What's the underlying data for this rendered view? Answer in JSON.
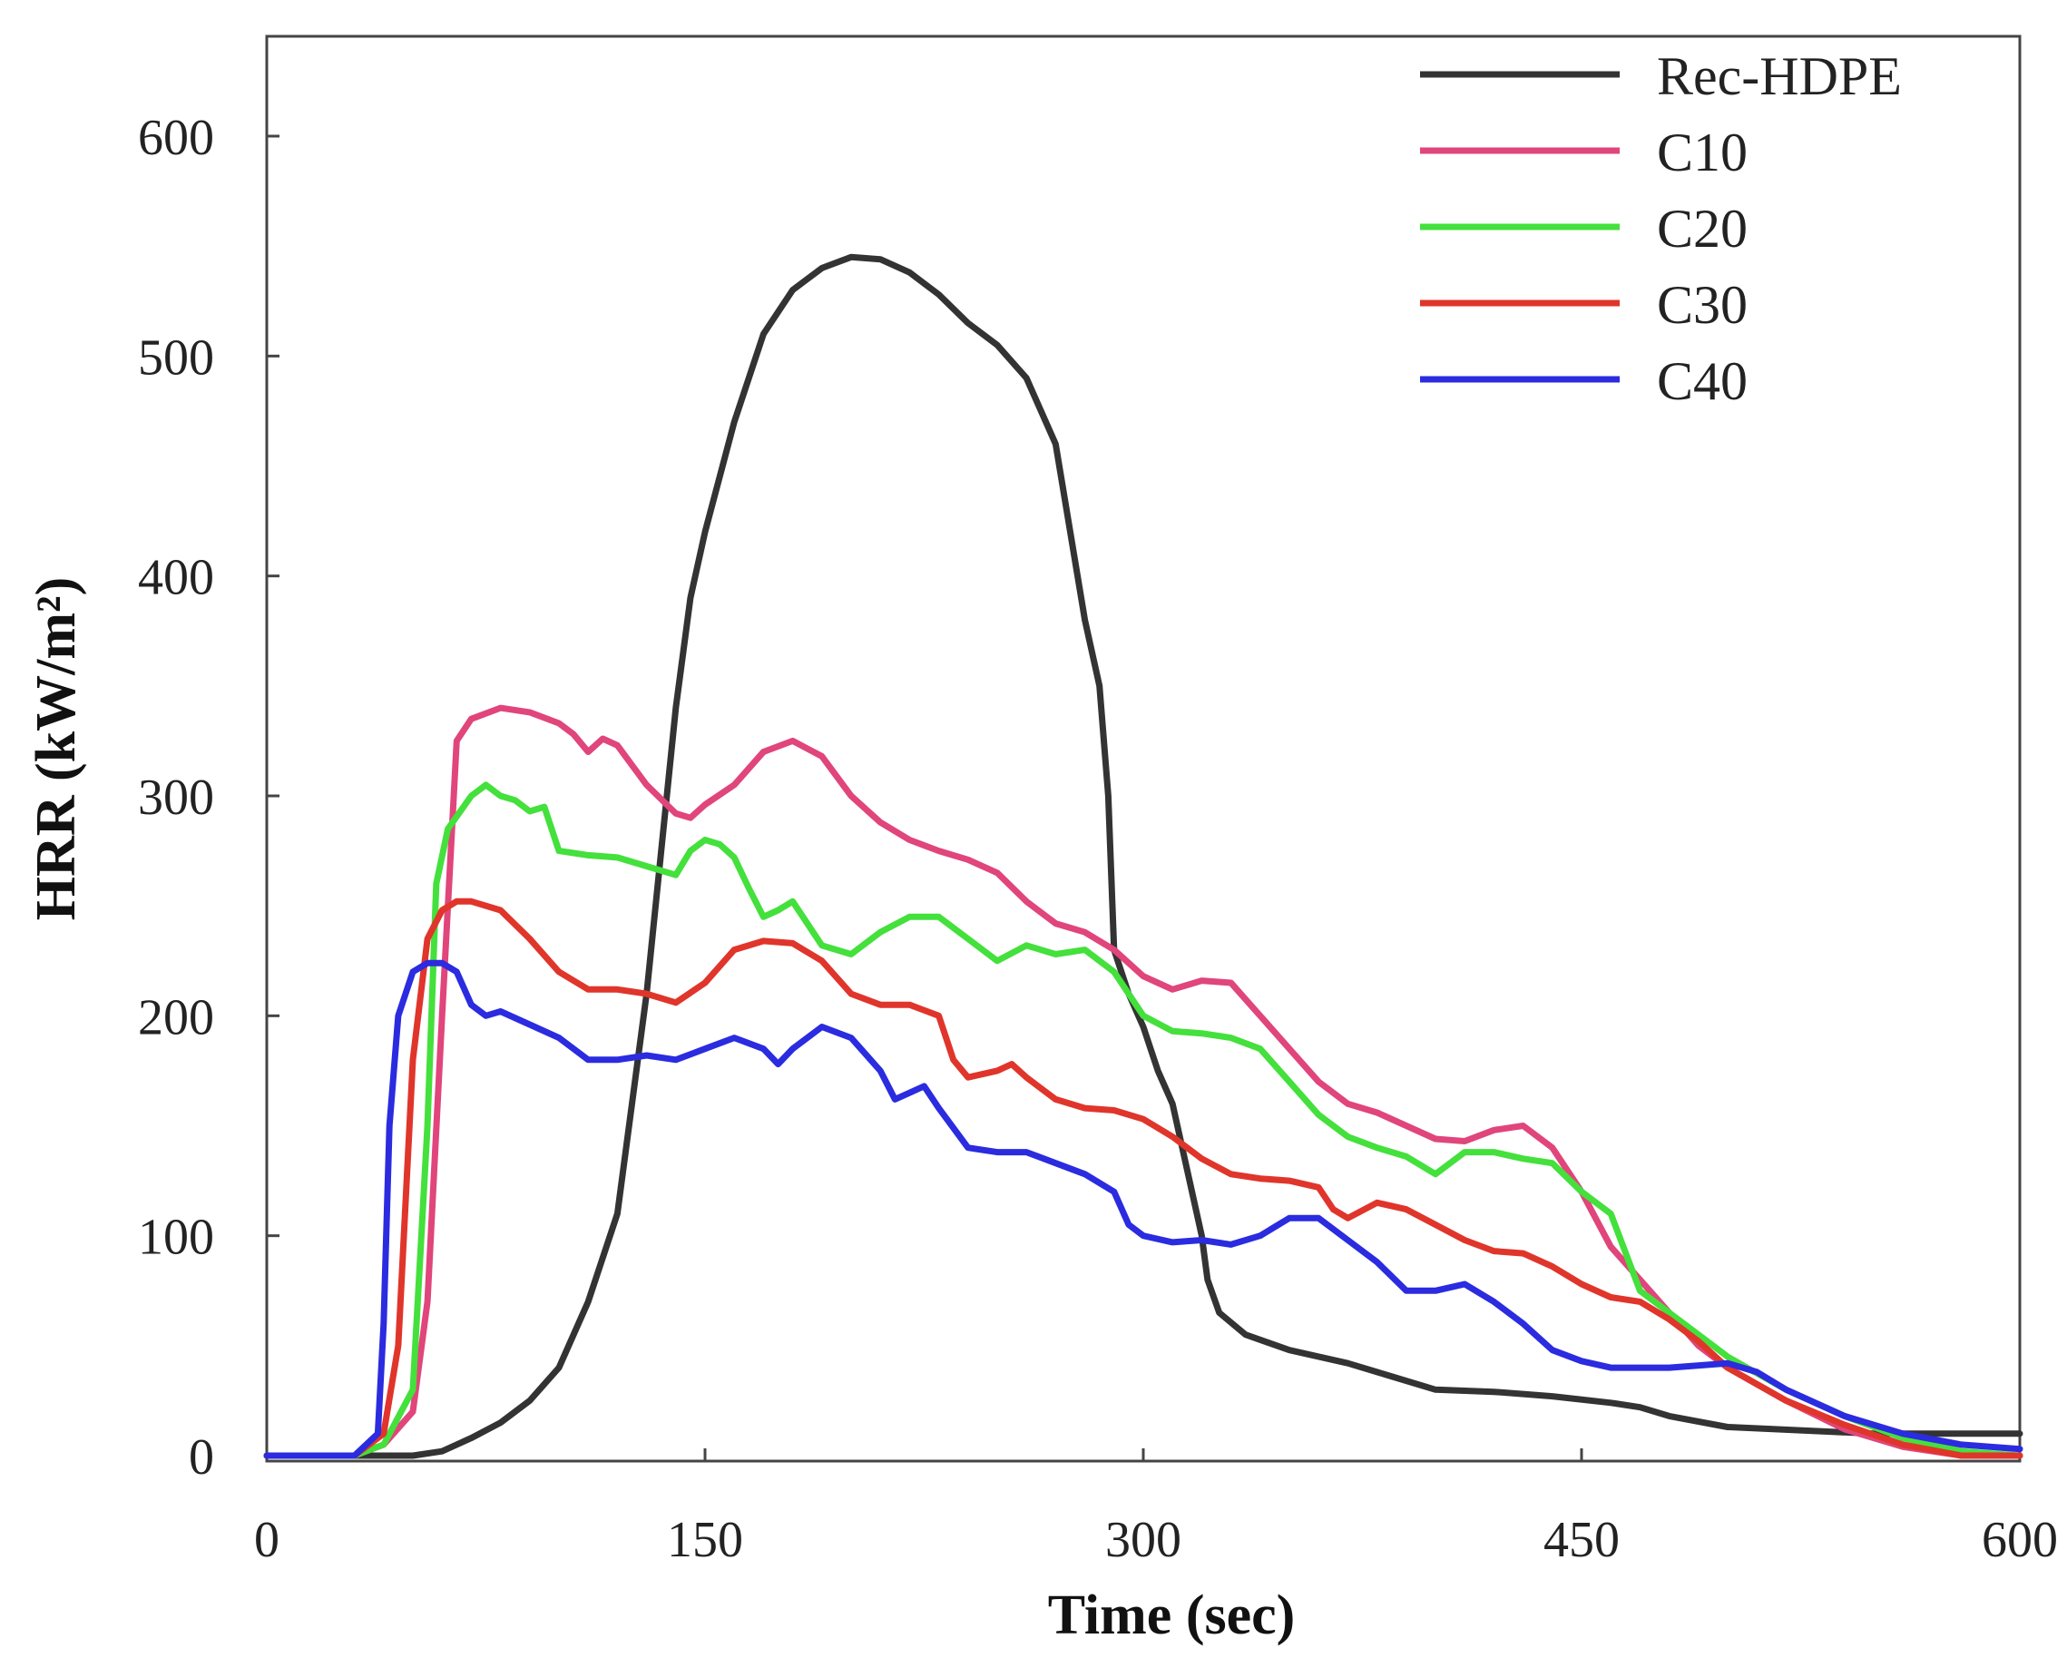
{
  "chart_data": {
    "type": "line",
    "xlabel": "Time (sec)",
    "ylabel": "HRR (kW/m²)",
    "xlim": [
      0,
      600
    ],
    "ylim": [
      0,
      600
    ],
    "xticks": [
      0,
      150,
      300,
      450,
      600
    ],
    "yticks": [
      0,
      100,
      200,
      300,
      400,
      500,
      600
    ],
    "grid": false,
    "legend": "top-right",
    "series": [
      {
        "name": "Rec-HDPE",
        "color": "#333333",
        "points": [
          [
            0,
            0
          ],
          [
            50,
            0
          ],
          [
            60,
            2
          ],
          [
            70,
            8
          ],
          [
            80,
            15
          ],
          [
            90,
            25
          ],
          [
            100,
            40
          ],
          [
            110,
            70
          ],
          [
            120,
            110
          ],
          [
            130,
            210
          ],
          [
            140,
            340
          ],
          [
            145,
            390
          ],
          [
            150,
            420
          ],
          [
            160,
            470
          ],
          [
            170,
            510
          ],
          [
            180,
            530
          ],
          [
            190,
            540
          ],
          [
            200,
            545
          ],
          [
            210,
            544
          ],
          [
            220,
            538
          ],
          [
            230,
            528
          ],
          [
            240,
            515
          ],
          [
            250,
            505
          ],
          [
            260,
            490
          ],
          [
            270,
            460
          ],
          [
            275,
            420
          ],
          [
            280,
            380
          ],
          [
            285,
            350
          ],
          [
            288,
            300
          ],
          [
            290,
            230
          ],
          [
            295,
            210
          ],
          [
            300,
            195
          ],
          [
            305,
            175
          ],
          [
            310,
            160
          ],
          [
            315,
            130
          ],
          [
            320,
            100
          ],
          [
            322,
            80
          ],
          [
            326,
            65
          ],
          [
            335,
            55
          ],
          [
            350,
            48
          ],
          [
            370,
            42
          ],
          [
            380,
            38
          ],
          [
            400,
            30
          ],
          [
            420,
            29
          ],
          [
            440,
            27
          ],
          [
            460,
            24
          ],
          [
            470,
            22
          ],
          [
            480,
            18
          ],
          [
            500,
            13
          ],
          [
            550,
            10
          ],
          [
            600,
            10
          ]
        ]
      },
      {
        "name": "C10",
        "color": "#e0457b",
        "points": [
          [
            0,
            0
          ],
          [
            30,
            0
          ],
          [
            40,
            5
          ],
          [
            50,
            20
          ],
          [
            55,
            70
          ],
          [
            60,
            200
          ],
          [
            65,
            325
          ],
          [
            70,
            335
          ],
          [
            80,
            340
          ],
          [
            90,
            338
          ],
          [
            100,
            333
          ],
          [
            105,
            328
          ],
          [
            110,
            320
          ],
          [
            115,
            326
          ],
          [
            120,
            323
          ],
          [
            130,
            305
          ],
          [
            140,
            292
          ],
          [
            145,
            290
          ],
          [
            150,
            296
          ],
          [
            160,
            305
          ],
          [
            170,
            320
          ],
          [
            180,
            325
          ],
          [
            190,
            318
          ],
          [
            200,
            300
          ],
          [
            210,
            288
          ],
          [
            220,
            280
          ],
          [
            230,
            275
          ],
          [
            240,
            271
          ],
          [
            250,
            265
          ],
          [
            260,
            252
          ],
          [
            270,
            242
          ],
          [
            280,
            238
          ],
          [
            290,
            230
          ],
          [
            300,
            218
          ],
          [
            310,
            212
          ],
          [
            320,
            216
          ],
          [
            330,
            215
          ],
          [
            340,
            200
          ],
          [
            350,
            185
          ],
          [
            360,
            170
          ],
          [
            370,
            160
          ],
          [
            380,
            156
          ],
          [
            390,
            150
          ],
          [
            400,
            144
          ],
          [
            410,
            143
          ],
          [
            420,
            148
          ],
          [
            430,
            150
          ],
          [
            440,
            140
          ],
          [
            450,
            120
          ],
          [
            460,
            95
          ],
          [
            470,
            80
          ],
          [
            480,
            65
          ],
          [
            490,
            50
          ],
          [
            500,
            40
          ],
          [
            520,
            25
          ],
          [
            540,
            12
          ],
          [
            560,
            4
          ],
          [
            580,
            0
          ],
          [
            600,
            0
          ]
        ]
      },
      {
        "name": "C20",
        "color": "#44e03c",
        "points": [
          [
            0,
            0
          ],
          [
            30,
            0
          ],
          [
            40,
            5
          ],
          [
            50,
            30
          ],
          [
            55,
            150
          ],
          [
            58,
            260
          ],
          [
            62,
            285
          ],
          [
            70,
            300
          ],
          [
            75,
            305
          ],
          [
            80,
            300
          ],
          [
            85,
            298
          ],
          [
            90,
            293
          ],
          [
            95,
            295
          ],
          [
            100,
            275
          ],
          [
            110,
            273
          ],
          [
            120,
            272
          ],
          [
            130,
            268
          ],
          [
            140,
            264
          ],
          [
            145,
            275
          ],
          [
            150,
            280
          ],
          [
            155,
            278
          ],
          [
            160,
            272
          ],
          [
            165,
            258
          ],
          [
            170,
            245
          ],
          [
            175,
            248
          ],
          [
            180,
            252
          ],
          [
            190,
            232
          ],
          [
            200,
            228
          ],
          [
            210,
            238
          ],
          [
            220,
            245
          ],
          [
            230,
            245
          ],
          [
            240,
            235
          ],
          [
            250,
            225
          ],
          [
            260,
            232
          ],
          [
            270,
            228
          ],
          [
            280,
            230
          ],
          [
            290,
            220
          ],
          [
            300,
            200
          ],
          [
            310,
            193
          ],
          [
            320,
            192
          ],
          [
            330,
            190
          ],
          [
            340,
            185
          ],
          [
            350,
            170
          ],
          [
            360,
            155
          ],
          [
            370,
            145
          ],
          [
            380,
            140
          ],
          [
            390,
            136
          ],
          [
            400,
            128
          ],
          [
            410,
            138
          ],
          [
            420,
            138
          ],
          [
            430,
            135
          ],
          [
            440,
            133
          ],
          [
            450,
            120
          ],
          [
            460,
            110
          ],
          [
            470,
            75
          ],
          [
            480,
            65
          ],
          [
            490,
            55
          ],
          [
            500,
            45
          ],
          [
            520,
            30
          ],
          [
            540,
            18
          ],
          [
            560,
            8
          ],
          [
            580,
            2
          ],
          [
            600,
            0
          ]
        ]
      },
      {
        "name": "C30",
        "color": "#e0352b",
        "points": [
          [
            0,
            0
          ],
          [
            30,
            0
          ],
          [
            40,
            10
          ],
          [
            45,
            50
          ],
          [
            50,
            180
          ],
          [
            55,
            235
          ],
          [
            60,
            248
          ],
          [
            65,
            252
          ],
          [
            70,
            252
          ],
          [
            80,
            248
          ],
          [
            90,
            235
          ],
          [
            100,
            220
          ],
          [
            110,
            212
          ],
          [
            120,
            212
          ],
          [
            130,
            210
          ],
          [
            140,
            206
          ],
          [
            150,
            215
          ],
          [
            160,
            230
          ],
          [
            170,
            234
          ],
          [
            180,
            233
          ],
          [
            190,
            225
          ],
          [
            200,
            210
          ],
          [
            210,
            205
          ],
          [
            220,
            205
          ],
          [
            230,
            200
          ],
          [
            235,
            180
          ],
          [
            240,
            172
          ],
          [
            250,
            175
          ],
          [
            255,
            178
          ],
          [
            260,
            172
          ],
          [
            270,
            162
          ],
          [
            280,
            158
          ],
          [
            290,
            157
          ],
          [
            300,
            153
          ],
          [
            310,
            145
          ],
          [
            320,
            135
          ],
          [
            330,
            128
          ],
          [
            340,
            126
          ],
          [
            350,
            125
          ],
          [
            360,
            122
          ],
          [
            365,
            112
          ],
          [
            370,
            108
          ],
          [
            380,
            115
          ],
          [
            390,
            112
          ],
          [
            400,
            105
          ],
          [
            410,
            98
          ],
          [
            420,
            93
          ],
          [
            430,
            92
          ],
          [
            440,
            86
          ],
          [
            450,
            78
          ],
          [
            460,
            72
          ],
          [
            470,
            70
          ],
          [
            480,
            62
          ],
          [
            490,
            52
          ],
          [
            500,
            40
          ],
          [
            520,
            25
          ],
          [
            540,
            14
          ],
          [
            560,
            5
          ],
          [
            580,
            0
          ],
          [
            600,
            0
          ]
        ]
      },
      {
        "name": "C40",
        "color": "#2b2be0",
        "points": [
          [
            0,
            0
          ],
          [
            30,
            0
          ],
          [
            38,
            10
          ],
          [
            40,
            60
          ],
          [
            42,
            150
          ],
          [
            45,
            200
          ],
          [
            50,
            220
          ],
          [
            55,
            224
          ],
          [
            60,
            224
          ],
          [
            65,
            220
          ],
          [
            70,
            205
          ],
          [
            75,
            200
          ],
          [
            80,
            202
          ],
          [
            90,
            196
          ],
          [
            100,
            190
          ],
          [
            110,
            180
          ],
          [
            120,
            180
          ],
          [
            130,
            182
          ],
          [
            140,
            180
          ],
          [
            150,
            185
          ],
          [
            160,
            190
          ],
          [
            170,
            185
          ],
          [
            175,
            178
          ],
          [
            180,
            185
          ],
          [
            190,
            195
          ],
          [
            200,
            190
          ],
          [
            210,
            175
          ],
          [
            215,
            162
          ],
          [
            220,
            165
          ],
          [
            225,
            168
          ],
          [
            230,
            158
          ],
          [
            240,
            140
          ],
          [
            250,
            138
          ],
          [
            260,
            138
          ],
          [
            270,
            133
          ],
          [
            280,
            128
          ],
          [
            290,
            120
          ],
          [
            295,
            105
          ],
          [
            300,
            100
          ],
          [
            310,
            97
          ],
          [
            320,
            98
          ],
          [
            330,
            96
          ],
          [
            340,
            100
          ],
          [
            350,
            108
          ],
          [
            360,
            108
          ],
          [
            370,
            98
          ],
          [
            380,
            88
          ],
          [
            390,
            75
          ],
          [
            400,
            75
          ],
          [
            410,
            78
          ],
          [
            420,
            70
          ],
          [
            430,
            60
          ],
          [
            440,
            48
          ],
          [
            450,
            43
          ],
          [
            460,
            40
          ],
          [
            480,
            40
          ],
          [
            500,
            42
          ],
          [
            510,
            38
          ],
          [
            520,
            30
          ],
          [
            540,
            18
          ],
          [
            560,
            10
          ],
          [
            580,
            5
          ],
          [
            600,
            3
          ]
        ]
      }
    ]
  }
}
